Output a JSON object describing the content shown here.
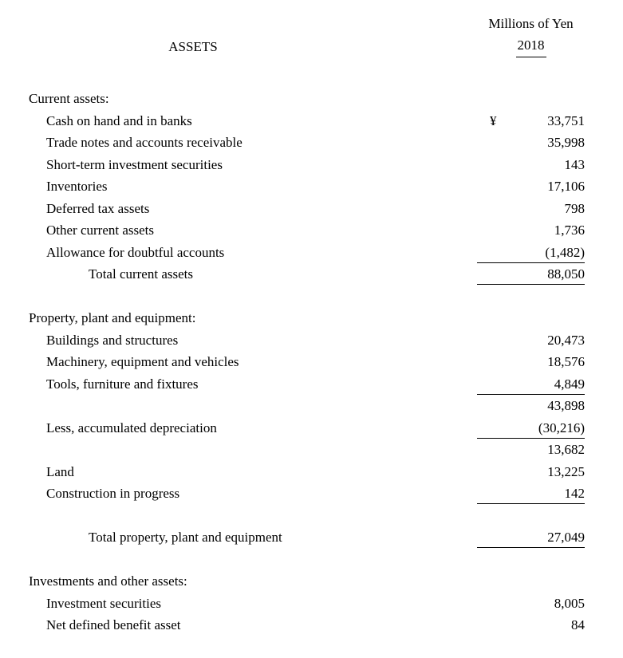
{
  "header": {
    "title": "ASSETS",
    "units": "Millions of Yen",
    "year": "2018"
  },
  "rows": [
    {
      "label": "Current assets:",
      "indent": 0,
      "currency": "",
      "amount": "",
      "rule": false,
      "gap": false
    },
    {
      "label": "Cash on hand and in banks",
      "indent": 1,
      "currency": "¥",
      "amount": "33,751",
      "rule": false,
      "gap": false
    },
    {
      "label": "Trade notes and accounts receivable",
      "indent": 1,
      "currency": "",
      "amount": "35,998",
      "rule": false,
      "gap": false
    },
    {
      "label": "Short-term investment securities",
      "indent": 1,
      "currency": "",
      "amount": "143",
      "rule": false,
      "gap": false
    },
    {
      "label": "Inventories",
      "indent": 1,
      "currency": "",
      "amount": "17,106",
      "rule": false,
      "gap": false
    },
    {
      "label": "Deferred tax assets",
      "indent": 1,
      "currency": "",
      "amount": "798",
      "rule": false,
      "gap": false
    },
    {
      "label": "Other current assets",
      "indent": 1,
      "currency": "",
      "amount": "1,736",
      "rule": false,
      "gap": false
    },
    {
      "label": "Allowance for doubtful accounts",
      "indent": 1,
      "currency": "",
      "amount": "(1,482)",
      "rule": true,
      "gap": false
    },
    {
      "label": "Total current assets",
      "indent": 2,
      "currency": "",
      "amount": "88,050",
      "rule": true,
      "gap": false
    },
    {
      "label": "Property, plant and equipment:",
      "indent": 0,
      "currency": "",
      "amount": "",
      "rule": false,
      "gap": true
    },
    {
      "label": "Buildings and structures",
      "indent": 1,
      "currency": "",
      "amount": "20,473",
      "rule": false,
      "gap": false
    },
    {
      "label": "Machinery, equipment and vehicles",
      "indent": 1,
      "currency": "",
      "amount": "18,576",
      "rule": false,
      "gap": false
    },
    {
      "label": "Tools, furniture and fixtures",
      "indent": 1,
      "currency": "",
      "amount": "4,849",
      "rule": true,
      "gap": false
    },
    {
      "label": "",
      "indent": 1,
      "currency": "",
      "amount": "43,898",
      "rule": false,
      "gap": false
    },
    {
      "label": "Less, accumulated depreciation",
      "indent": 1,
      "currency": "",
      "amount": "(30,216)",
      "rule": true,
      "gap": false
    },
    {
      "label": "",
      "indent": 1,
      "currency": "",
      "amount": "13,682",
      "rule": false,
      "gap": false
    },
    {
      "label": "Land",
      "indent": 1,
      "currency": "",
      "amount": "13,225",
      "rule": false,
      "gap": false
    },
    {
      "label": "Construction in progress",
      "indent": 1,
      "currency": "",
      "amount": "142",
      "rule": true,
      "gap": false
    },
    {
      "label": "Total property, plant and equipment",
      "indent": 2,
      "currency": "",
      "amount": "27,049",
      "rule": true,
      "gap": true
    },
    {
      "label": "Investments and other assets:",
      "indent": 0,
      "currency": "",
      "amount": "",
      "rule": false,
      "gap": true
    },
    {
      "label": "Investment securities",
      "indent": 1,
      "currency": "",
      "amount": "8,005",
      "rule": false,
      "gap": false
    },
    {
      "label": "Net defined benefit asset",
      "indent": 1,
      "currency": "",
      "amount": "84",
      "rule": false,
      "gap": false
    }
  ]
}
